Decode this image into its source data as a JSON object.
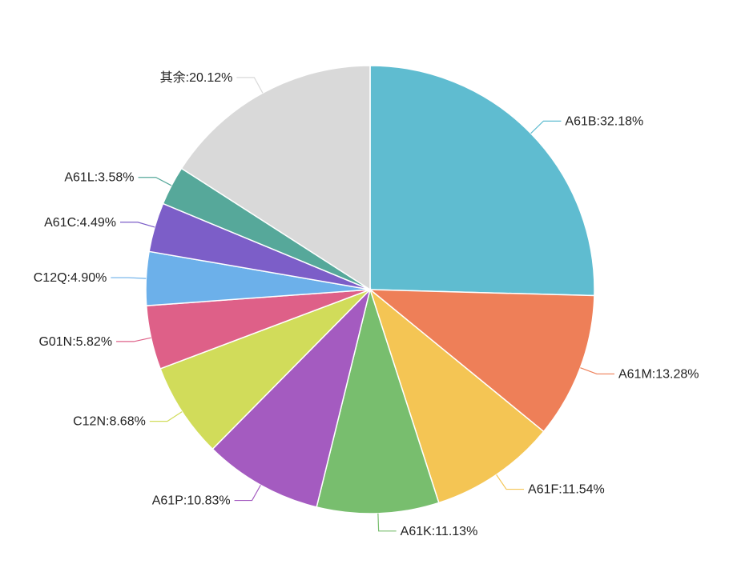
{
  "chart_data": {
    "type": "pie",
    "title": "",
    "slices": [
      {
        "name": "A61B",
        "label": "A61B:32.18%",
        "value": 32.18,
        "color": "#5fbcd0"
      },
      {
        "name": "A61M",
        "label": "A61M:13.28%",
        "value": 13.28,
        "color": "#ee7f58"
      },
      {
        "name": "A61F",
        "label": "A61F:11.54%",
        "value": 11.54,
        "color": "#f4c554"
      },
      {
        "name": "A61K",
        "label": "A61K:11.13%",
        "value": 11.13,
        "color": "#78be6e"
      },
      {
        "name": "A61P",
        "label": "A61P:10.83%",
        "value": 10.83,
        "color": "#a45bc0"
      },
      {
        "name": "C12N",
        "label": "C12N:8.68%",
        "value": 8.68,
        "color": "#d1dc5a"
      },
      {
        "name": "G01N",
        "label": "G01N:5.82%",
        "value": 5.82,
        "color": "#de6088"
      },
      {
        "name": "C12Q",
        "label": "C12Q:4.90%",
        "value": 4.9,
        "color": "#6cb0ea"
      },
      {
        "name": "A61C",
        "label": "A61C:4.49%",
        "value": 4.49,
        "color": "#7c5ec8"
      },
      {
        "name": "A61L",
        "label": "A61L:3.58%",
        "value": 3.58,
        "color": "#56a89a"
      },
      {
        "name": "其余",
        "label": "其余:20.12%",
        "value": 20.12,
        "color": "#d9d9d9"
      }
    ]
  }
}
